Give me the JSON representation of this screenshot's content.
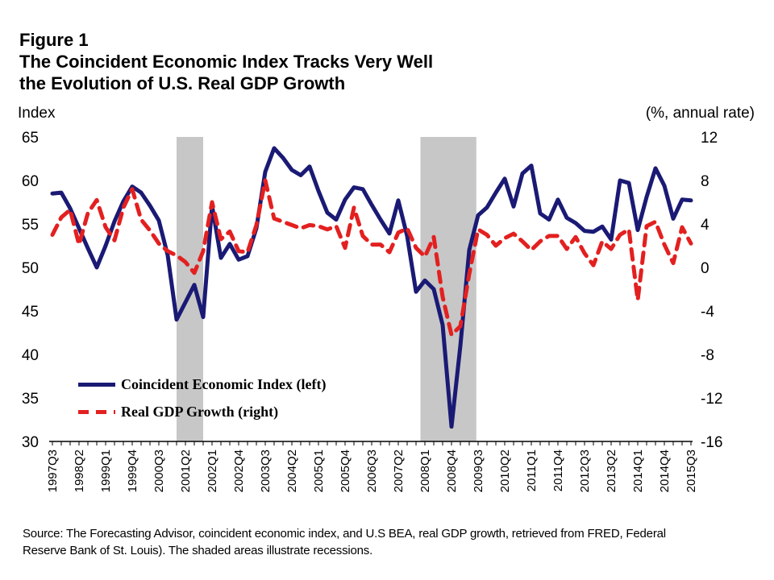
{
  "title": {
    "figure_label": "Figure 1",
    "line1": "The Coincident Economic Index Tracks Very Well",
    "line2": "the Evolution of U.S. Real GDP Growth"
  },
  "axis_titles": {
    "left": "Index",
    "right": "(%, annual rate)"
  },
  "legend": {
    "items": [
      {
        "label": "Coincident Economic Index (left)",
        "color": "#1a1a75",
        "style": "solid"
      },
      {
        "label": "Real GDP Growth (right)",
        "color": "#e32020",
        "style": "dashed"
      }
    ]
  },
  "source": {
    "line1": "Source: The Forecasting Advisor, coincident economic index, and U.S BEA, real GDP growth, retrieved from FRED, Federal",
    "line2": "Reserve Bank of St. Louis). The shaded areas illustrate recessions."
  },
  "colors": {
    "cei_line": "#1a1a75",
    "gdp_line": "#e32020",
    "recession_shade": "#c7c7c7",
    "axis": "#000000"
  },
  "chart_data": {
    "type": "line",
    "title": "The Coincident Economic Index Tracks Very Well the Evolution of U.S. Real GDP Growth",
    "categories": [
      "1997Q3",
      "1997Q4",
      "1998Q1",
      "1998Q2",
      "1998Q3",
      "1998Q4",
      "1999Q1",
      "1999Q2",
      "1999Q3",
      "1999Q4",
      "2000Q1",
      "2000Q2",
      "2000Q3",
      "2000Q4",
      "2001Q1",
      "2001Q2",
      "2001Q3",
      "2001Q4",
      "2002Q1",
      "2002Q2",
      "2002Q3",
      "2002Q4",
      "2003Q1",
      "2003Q2",
      "2003Q3",
      "2003Q4",
      "2004Q1",
      "2004Q2",
      "2004Q3",
      "2004Q4",
      "2005Q1",
      "2005Q2",
      "2005Q3",
      "2005Q4",
      "2006Q1",
      "2006Q2",
      "2006Q3",
      "2006Q4",
      "2007Q1",
      "2007Q2",
      "2007Q3",
      "2007Q4",
      "2008Q1",
      "2008Q2",
      "2008Q3",
      "2008Q4",
      "2009Q1",
      "2009Q2",
      "2009Q3",
      "2009Q4",
      "2010Q1",
      "2010Q2",
      "2010Q3",
      "2010Q4",
      "2011Q1",
      "2011Q2",
      "2011Q3",
      "2011Q4",
      "2012Q1",
      "2012Q2",
      "2012Q3",
      "2012Q4",
      "2013Q1",
      "2013Q2",
      "2013Q3",
      "2013Q4",
      "2014Q1",
      "2014Q2",
      "2014Q3",
      "2014Q4",
      "2015Q1",
      "2015Q2",
      "2015Q3"
    ],
    "x_label_step": 3,
    "series": [
      {
        "name": "Coincident Economic Index (left)",
        "axis": "left",
        "style": "solid",
        "values": [
          58.5,
          58.6,
          56.8,
          54.5,
          52.2,
          50.0,
          52.5,
          55.3,
          57.6,
          59.3,
          58.6,
          57.1,
          55.4,
          51.4,
          44.0,
          46.0,
          48.0,
          44.3,
          57.1,
          51.1,
          52.7,
          50.9,
          51.3,
          54.5,
          61.0,
          63.7,
          62.6,
          61.2,
          60.6,
          61.6,
          58.8,
          56.3,
          55.5,
          57.8,
          59.2,
          59.0,
          57.2,
          55.5,
          53.9,
          57.7,
          53.6,
          47.2,
          48.5,
          47.5,
          43.4,
          31.7,
          41.0,
          52.0,
          56.0,
          56.9,
          58.6,
          60.2,
          57.0,
          60.8,
          61.7,
          56.2,
          55.5,
          57.8,
          55.7,
          55.1,
          54.2,
          54.1,
          54.7,
          53.2,
          60.0,
          59.7,
          54.3,
          58.1,
          61.4,
          59.4,
          55.6,
          57.8,
          57.7
        ]
      },
      {
        "name": "Real GDP Growth (right)",
        "axis": "right",
        "style": "dashed",
        "values": [
          3.0,
          4.6,
          5.3,
          2.1,
          5.0,
          6.2,
          3.7,
          2.5,
          5.5,
          7.2,
          4.4,
          3.4,
          2.2,
          1.5,
          1.1,
          0.5,
          -0.5,
          1.5,
          6.0,
          2.6,
          3.3,
          1.5,
          1.4,
          3.9,
          8.0,
          4.5,
          4.2,
          3.9,
          3.6,
          3.9,
          3.8,
          3.5,
          3.8,
          1.8,
          5.5,
          2.9,
          2.1,
          2.1,
          1.4,
          3.2,
          3.6,
          1.8,
          1.0,
          2.8,
          -2.7,
          -6.2,
          -5.4,
          -0.6,
          3.5,
          3.0,
          2.0,
          2.7,
          3.1,
          2.4,
          1.6,
          2.4,
          2.9,
          2.9,
          1.7,
          2.8,
          1.3,
          0.2,
          2.4,
          1.7,
          3.0,
          3.5,
          -3.0,
          3.8,
          4.2,
          2.1,
          0.4,
          3.7,
          2.2
        ]
      }
    ],
    "left_axis": {
      "label": "Index",
      "min": 30,
      "max": 65,
      "tick_step": 5,
      "ticks": [
        65,
        60,
        55,
        50,
        45,
        40,
        35,
        30
      ]
    },
    "right_axis": {
      "label": "(%, annual rate)",
      "min": -16,
      "max": 12,
      "tick_step": 4,
      "ticks": [
        12,
        8,
        4,
        0,
        -4,
        -8,
        -12,
        -16
      ]
    },
    "recession_bands": [
      {
        "label": "2001 recession",
        "from_q": 14,
        "to_q": 17
      },
      {
        "label": "2007-2009 recession",
        "from_q": 41.5,
        "to_q": 47.8
      }
    ],
    "grid": false,
    "legend_position": "inside-lower-left"
  }
}
